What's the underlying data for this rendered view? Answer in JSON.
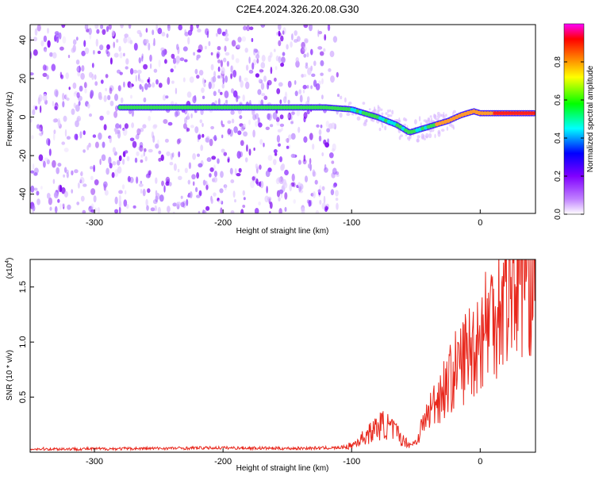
{
  "title": "C2E4.2024.326.20.08.G30",
  "chart_data": [
    {
      "type": "heatmap",
      "xlabel": "Height of straight line (km)",
      "ylabel": "Frequency (Hz)",
      "xlim": [
        -350,
        43
      ],
      "ylim": [
        -50,
        48
      ],
      "xticks": [
        -300,
        -200,
        -100,
        0
      ],
      "yticks": [
        -40,
        -20,
        0,
        20,
        40
      ],
      "grid": false,
      "colorbar": {
        "label": "Normalized spectral amplitude",
        "range": [
          0,
          1
        ],
        "ticks": [
          "0.0",
          "0.2",
          "0.4",
          "0.6",
          "0.8"
        ],
        "colors": [
          "#ffffff",
          "#8000ff",
          "#0000ff",
          "#00ffff",
          "#00ff00",
          "#ffff00",
          "#ff8000",
          "#ff0000",
          "#ff00ff"
        ]
      },
      "ridge": {
        "x": [
          -280,
          -250,
          -200,
          -150,
          -120,
          -100,
          -80,
          -65,
          -55,
          -45,
          -35,
          -25,
          -15,
          -5,
          0,
          10,
          20,
          43
        ],
        "y": [
          5,
          5,
          5,
          5,
          5,
          4,
          0,
          -4,
          -8,
          -6,
          -4,
          -2,
          1,
          3,
          2,
          2,
          2,
          2
        ]
      },
      "noise_region": {
        "x_from": -350,
        "x_to": -110
      }
    },
    {
      "type": "line",
      "xlabel": "Height of straight line (km)",
      "ylabel": "SNR (10 * v/v)",
      "multiplier_label": "(x10",
      "multiplier_exp": "4",
      "xlim": [
        -350,
        43
      ],
      "ylim": [
        0,
        17500
      ],
      "xticks": [
        -300,
        -200,
        -100,
        0
      ],
      "yticks": [
        5000,
        10000,
        15000
      ],
      "ytick_labels": [
        "0.5",
        "1.0",
        "1.5"
      ],
      "color": "#e8271c",
      "series": [
        {
          "name": "SNR",
          "x": [
            -350,
            -300,
            -250,
            -200,
            -150,
            -110,
            -100,
            -95,
            -90,
            -85,
            -80,
            -75,
            -70,
            -65,
            -60,
            -55,
            -50,
            -45,
            -40,
            -35,
            -30,
            -25,
            -20,
            -15,
            -10,
            -5,
            0,
            5,
            10,
            15,
            20,
            25,
            30,
            35,
            43
          ],
          "y": [
            300,
            300,
            350,
            400,
            350,
            400,
            600,
            1000,
            1400,
            1800,
            2300,
            2500,
            2200,
            1800,
            1100,
            700,
            900,
            2400,
            3600,
            4600,
            5500,
            6300,
            7300,
            8100,
            9100,
            9600,
            10600,
            11800,
            12800,
            13600,
            14600,
            15600,
            16300,
            16800,
            17100
          ]
        }
      ]
    }
  ]
}
